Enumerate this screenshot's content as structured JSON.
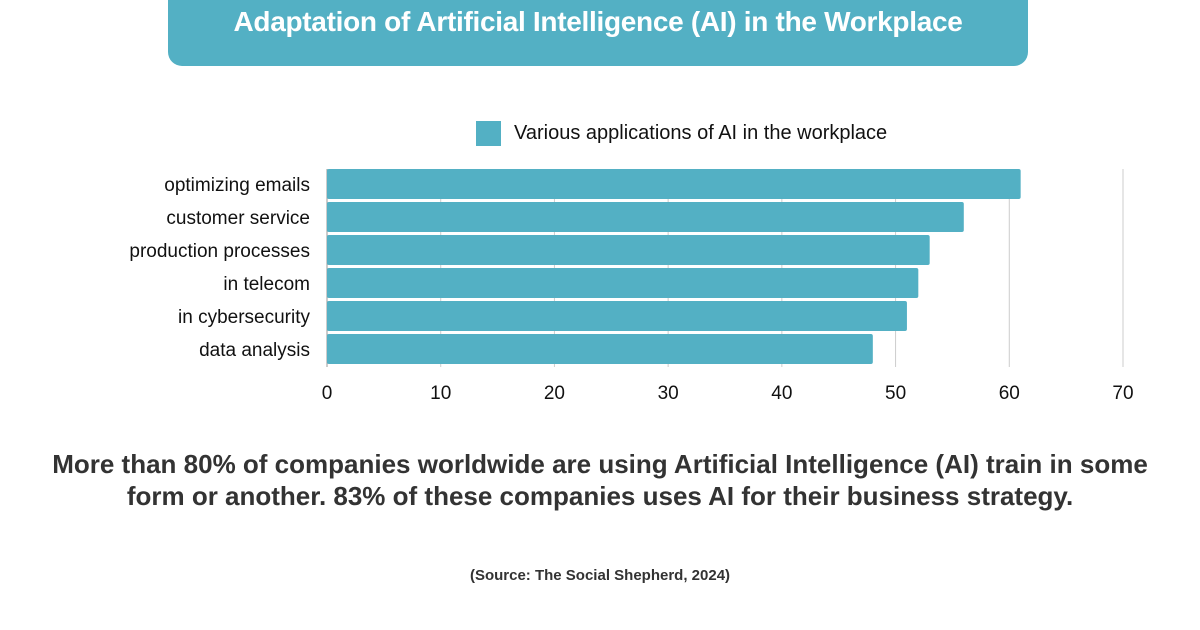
{
  "header": {
    "title": "Adaptation of Artificial Intelligence (AI) in the Workplace"
  },
  "colors": {
    "accent": "#53b0c4",
    "grid": "#cccccc",
    "text": "#111111"
  },
  "chart_data": {
    "type": "bar",
    "orientation": "horizontal",
    "title": "Adaptation of Artificial Intelligence (AI) in the Workplace",
    "categories": [
      "optimizing emails",
      "customer service",
      "production processes",
      "in telecom",
      "in cybersecurity",
      "data analysis"
    ],
    "series": [
      {
        "name": "Various applications of AI in the workplace",
        "values": [
          61,
          56,
          53,
          52,
          51,
          48
        ]
      }
    ],
    "xlim": [
      0,
      70
    ],
    "xticks": [
      "0",
      "10",
      "20",
      "30",
      "40",
      "50",
      "60",
      "70"
    ],
    "grid": true,
    "legend": "top",
    "xlabel": "",
    "ylabel": ""
  },
  "footer": {
    "summary": "More than 80% of companies worldwide are using Artificial Intelligence (AI) train in some form or another. 83% of these companies uses AI for their business strategy.",
    "source": "(Source: The Social Shepherd, 2024)"
  }
}
